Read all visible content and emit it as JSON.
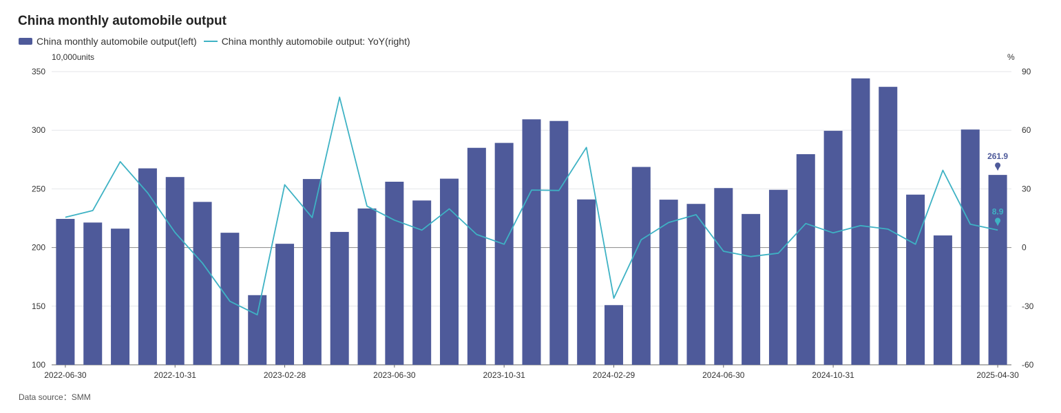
{
  "chart_data": {
    "type": "bar",
    "title": "China monthly automobile output",
    "left_unit": "10,000units",
    "right_unit": "%",
    "source": "Data source：SMM",
    "ylim_left": [
      100,
      350
    ],
    "yticks_left": [
      "100",
      "150",
      "200",
      "250",
      "300",
      "350"
    ],
    "ylim_right": [
      -60,
      90
    ],
    "yticks_right": [
      "-60",
      "-30",
      "0",
      "30",
      "60",
      "90"
    ],
    "categories": [
      "2022-06-30",
      "2022-07-31",
      "2022-08-31",
      "2022-09-30",
      "2022-10-31",
      "2022-11-30",
      "2022-12-31",
      "2023-01-31",
      "2023-02-28",
      "2023-03-31",
      "2023-04-30",
      "2023-05-31",
      "2023-06-30",
      "2023-07-31",
      "2023-08-31",
      "2023-09-30",
      "2023-10-31",
      "2023-11-30",
      "2023-12-31",
      "2024-01-31",
      "2024-02-29",
      "2024-03-31",
      "2024-04-30",
      "2024-05-31",
      "2024-06-30",
      "2024-07-31",
      "2024-08-31",
      "2024-09-30",
      "2024-10-31",
      "2024-11-30",
      "2024-12-31",
      "2025-01-31",
      "2025-02-28",
      "2025-03-31",
      "2025-04-30"
    ],
    "shown_x_labels": [
      "2022-06-30",
      "2022-10-31",
      "2023-02-28",
      "2023-06-30",
      "2023-10-31",
      "2024-02-29",
      "2024-06-30",
      "2024-10-31",
      "2025-04-30"
    ],
    "series": [
      {
        "name": "China monthly automobile output(left)",
        "type": "bar",
        "axis": "left",
        "color": "#4e5a9a",
        "values": [
          224.4,
          221.3,
          216.1,
          267.5,
          260.1,
          238.9,
          212.6,
          159.4,
          203.2,
          258.4,
          213.3,
          233.3,
          256.1,
          240.1,
          258.7,
          285.0,
          289.2,
          309.3,
          307.9,
          241.0,
          150.9,
          268.7,
          240.8,
          237.2,
          250.7,
          228.6,
          249.2,
          279.6,
          299.5,
          344.2,
          337.0,
          245.1,
          210.3,
          300.6,
          261.9
        ]
      },
      {
        "name": "China monthly automobile output: YoY(right)",
        "type": "line",
        "axis": "right",
        "color": "#3eb2c4",
        "values": [
          15.5,
          18.9,
          43.9,
          28.0,
          7.7,
          -8.0,
          -27.5,
          -34.4,
          32.1,
          15.3,
          76.9,
          21.2,
          14.0,
          8.9,
          19.8,
          6.7,
          1.7,
          29.4,
          29.2,
          51.2,
          -25.9,
          4.0,
          12.8,
          16.8,
          -1.9,
          -4.6,
          -2.9,
          12.3,
          7.5,
          11.2,
          9.4,
          1.7,
          39.5,
          11.9,
          8.9
        ]
      }
    ],
    "annotations": [
      {
        "label": "261.9",
        "series": 0,
        "index": 34
      },
      {
        "label": "8.9",
        "series": 1,
        "index": 34
      }
    ],
    "legend": "top-left",
    "grid": true
  }
}
